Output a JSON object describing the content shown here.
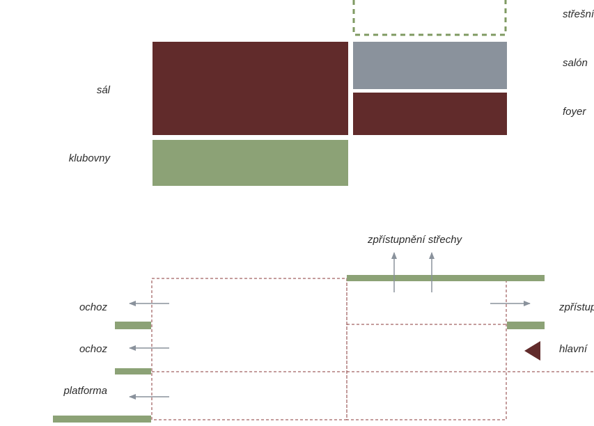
{
  "colors": {
    "maroon": "#612b2b",
    "green": "#8ca276",
    "gray": "#8a929c",
    "dash_green": "#7f9a62",
    "dash_maroon": "#8a3a3a",
    "arrow_gray": "#8a929c"
  },
  "top_section": {
    "labels": {
      "sal": "sál",
      "klubovny": "klubovny",
      "stresni": "střešní",
      "salon": "salón",
      "foyer": "foyer"
    }
  },
  "bottom_section": {
    "labels": {
      "zpristupneni_strechy": "zpřístupnění střechy",
      "ochoz_1": "ochoz",
      "ochoz_2": "ochoz",
      "platforma": "platforma",
      "zpristupneni_right": "zpřístupnění",
      "hlavni": "hlavní"
    }
  },
  "icons": {
    "arrow_left": "arrow-left-icon",
    "arrow_right": "arrow-right-icon",
    "arrow_up": "arrow-up-icon",
    "triangle": "entrance-triangle-icon"
  }
}
